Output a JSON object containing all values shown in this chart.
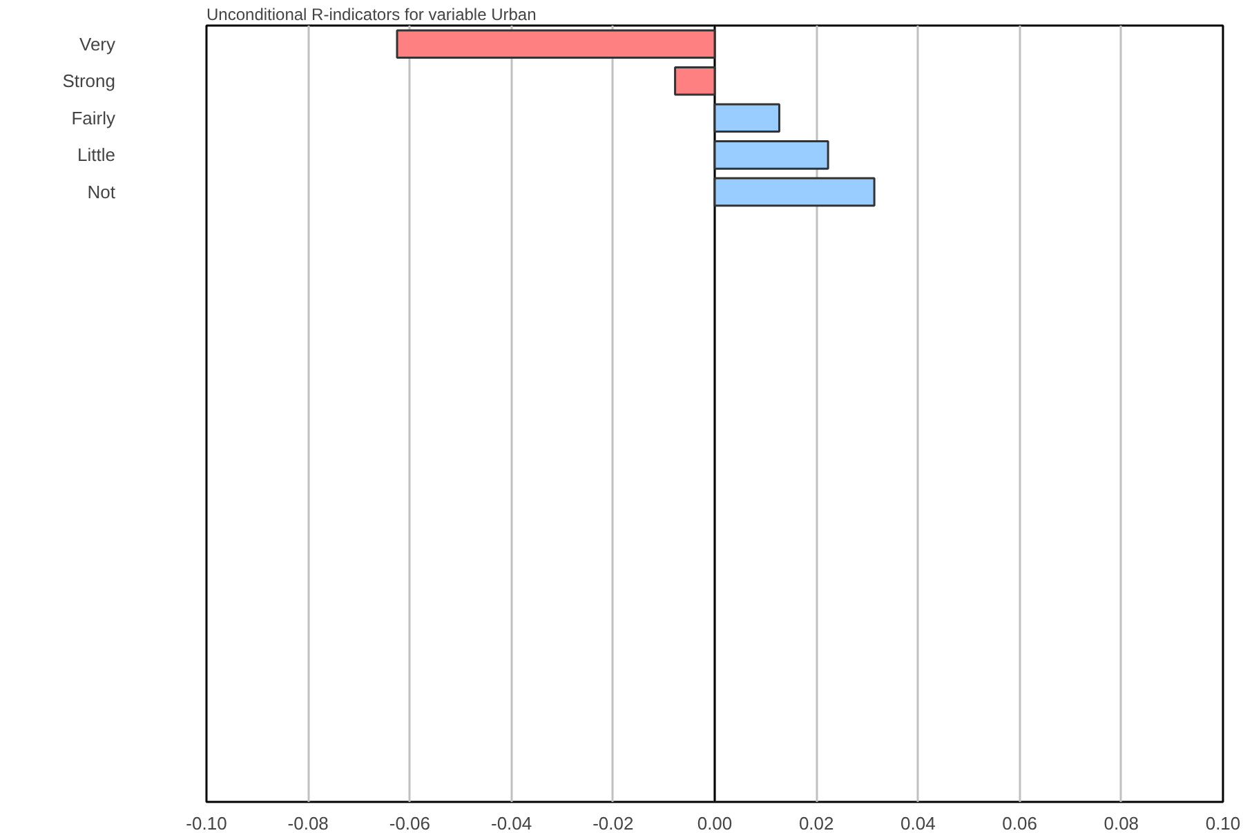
{
  "chart_data": {
    "type": "bar",
    "orientation": "horizontal",
    "title": "Unconditional R-indicators for variable Urban",
    "categories": [
      "Very",
      "Strong",
      "Fairly",
      "Little",
      "Not",
      null,
      null,
      null,
      null,
      null,
      null,
      null,
      null,
      null,
      null,
      null,
      null,
      null,
      null,
      null,
      null
    ],
    "values": [
      -0.0625,
      -0.0078,
      0.0127,
      0.0223,
      0.0314,
      null,
      null,
      null,
      null,
      null,
      null,
      null,
      null,
      null,
      null,
      null,
      null,
      null,
      null,
      null,
      null
    ],
    "colors": [
      "#ff8080",
      "#ff8080",
      "#99ccff",
      "#99ccff",
      "#99ccff",
      "#99ccff",
      "#99ccff",
      "#99ccff",
      "#99ccff",
      "#99ccff",
      "#99ccff",
      "#99ccff",
      "#99ccff",
      "#99ccff",
      "#99ccff",
      "#99ccff",
      "#99ccff",
      "#99ccff",
      "#99ccff",
      "#99ccff",
      "#99ccff"
    ],
    "xlim": [
      -0.1,
      0.1
    ],
    "xticks": [
      {
        "value": -0.1,
        "label": "-0.10"
      },
      {
        "value": -0.08,
        "label": "-0.08"
      },
      {
        "value": -0.06,
        "label": "-0.06"
      },
      {
        "value": -0.04,
        "label": "-0.04"
      },
      {
        "value": -0.02,
        "label": "-0.02"
      },
      {
        "value": 0,
        "label": "0.00"
      },
      {
        "value": 0.02,
        "label": "0.02"
      },
      {
        "value": 0.04,
        "label": "0.04"
      },
      {
        "value": 0.06,
        "label": "0.06"
      },
      {
        "value": 0.08,
        "label": "0.08"
      },
      {
        "value": 0.1,
        "label": "0.10"
      }
    ],
    "ref_lines": [
      {
        "axis": "x",
        "value": 0,
        "label": null,
        "color": "#000000"
      }
    ],
    "grid": "x"
  }
}
